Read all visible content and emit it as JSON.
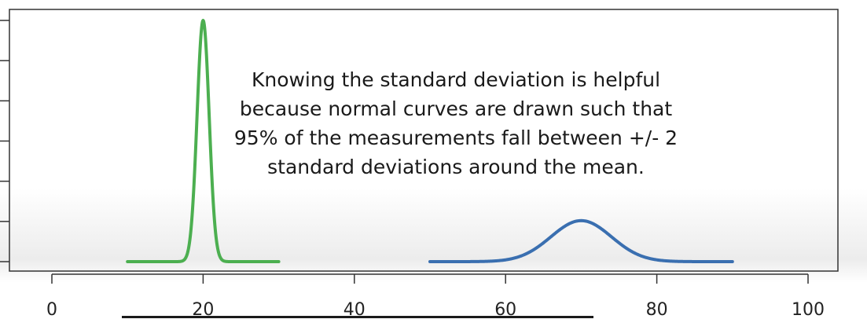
{
  "chart_data": {
    "type": "line",
    "title": "",
    "xlabel": "",
    "ylabel": "",
    "xlim": [
      0,
      100
    ],
    "x_ticks": [
      0,
      20,
      40,
      60,
      80,
      100
    ],
    "x_tick_labels": [
      "0",
      "20",
      "40",
      "60",
      "80",
      "100"
    ],
    "y_tick_count": 7,
    "y_tick_labels_visible": false,
    "grid": false,
    "legend": "none",
    "series": [
      {
        "color": "#4caf50",
        "distribution": "normal",
        "mean": 20,
        "sd": 0.8,
        "x_range": [
          10,
          30
        ],
        "peak_relative_height": 1.0
      },
      {
        "color": "#3a6fb0",
        "distribution": "normal",
        "mean": 70,
        "sd": 4,
        "x_range": [
          50,
          90
        ],
        "peak_relative_height": 0.17
      }
    ],
    "annotations": [
      "Knowing the standard deviation is helpful",
      "because normal curves are drawn such that",
      "95% of the measurements fall between +/- 2",
      "standard deviations around the mean."
    ]
  }
}
